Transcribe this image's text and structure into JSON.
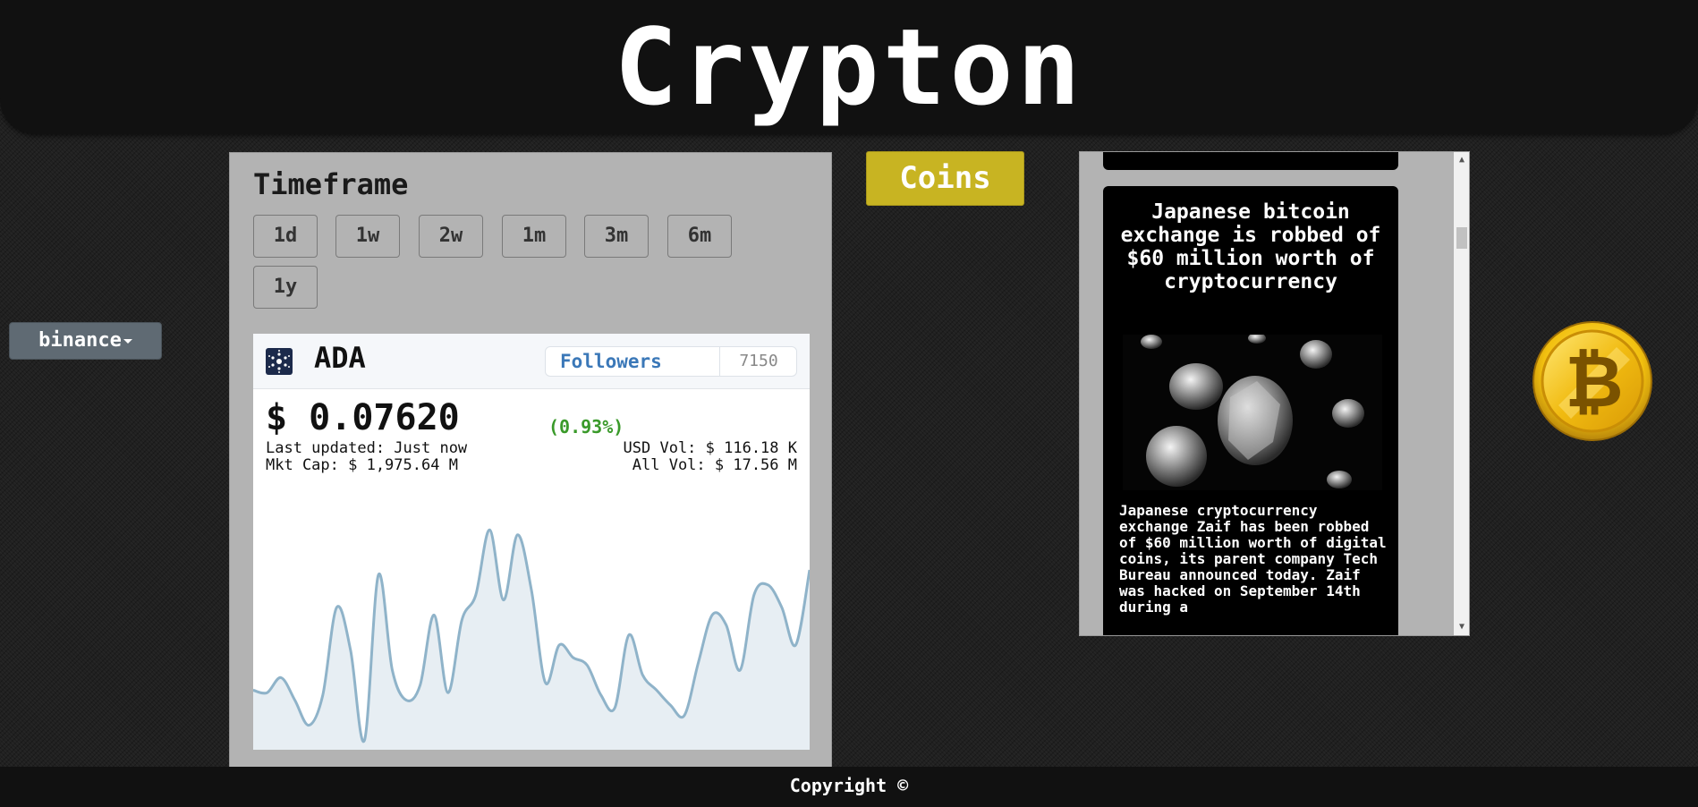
{
  "header": {
    "title": "Crypton"
  },
  "exchange": {
    "selected": "binance"
  },
  "timeframe": {
    "title": "Timeframe",
    "buttons": [
      "1d",
      "1w",
      "2w",
      "1m",
      "3m",
      "6m",
      "1y"
    ]
  },
  "coin": {
    "symbol": "ADA",
    "followers_label": "Followers",
    "followers_count": "7150",
    "price": "$ 0.07620",
    "change": "(0.93%)",
    "last_updated": "Last updated: Just now",
    "usd_vol": "USD Vol: $ 116.18 K",
    "mkt_cap": "Mkt Cap: $ 1,975.64 M",
    "all_vol": "All Vol: $ 17.56 M"
  },
  "chart_data": {
    "type": "area",
    "x": [
      0,
      1,
      2,
      3,
      4,
      5,
      6,
      7,
      8,
      9,
      10,
      11,
      12,
      13,
      14,
      15,
      16,
      17,
      18,
      19,
      20,
      21,
      22,
      23,
      24,
      25,
      26,
      27,
      28,
      29,
      30,
      31,
      32,
      33,
      34,
      35,
      36,
      37,
      38,
      39,
      40
    ],
    "values": [
      0.22,
      0.21,
      0.27,
      0.18,
      0.08,
      0.2,
      0.55,
      0.38,
      0.02,
      0.68,
      0.3,
      0.18,
      0.24,
      0.52,
      0.21,
      0.5,
      0.6,
      0.86,
      0.58,
      0.84,
      0.62,
      0.25,
      0.4,
      0.35,
      0.32,
      0.2,
      0.15,
      0.44,
      0.28,
      0.22,
      0.16,
      0.12,
      0.33,
      0.52,
      0.48,
      0.3,
      0.6,
      0.64,
      0.55,
      0.4,
      0.7
    ],
    "series_color": "#8fb3c9",
    "fill_color": "#e7eef3"
  },
  "coins_button": {
    "label": "Coins"
  },
  "news": {
    "title": "Japanese bitcoin exchange is robbed of $60 million worth of cryptocurrency",
    "body": "Japanese cryptocurrency exchange Zaif has been robbed of $60 million worth of digital coins, its parent company Tech Bureau announced today. Zaif was hacked on September 14th during a"
  },
  "colors": {
    "header_bg": "#111111",
    "panel_bg": "#b3b3b3",
    "coins_button": "#c8b422",
    "exchange_dropdown": "#5f6a73",
    "followers_link": "#3b78b8",
    "change_positive": "#3a9a2a",
    "bitcoin_gold": "#f2c00f"
  },
  "footer": {
    "copyright": "Copyright ©"
  }
}
